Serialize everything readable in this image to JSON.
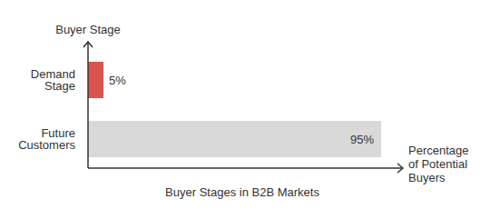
{
  "chart_data": {
    "type": "bar",
    "orientation": "horizontal",
    "title": "Buyer Stages in B2B Markets",
    "x_label": "Percentage of Potential Buyers",
    "y_label": "Buyer Stage",
    "categories": [
      "Demand Stage",
      "Future Customers"
    ],
    "values": [
      5,
      95
    ],
    "value_labels": [
      "5%",
      "95%"
    ],
    "colors": [
      "#d9534f",
      "#d9d9d9"
    ],
    "data_labels": true,
    "tick_labels": "y",
    "xlim": [
      0,
      100
    ]
  }
}
